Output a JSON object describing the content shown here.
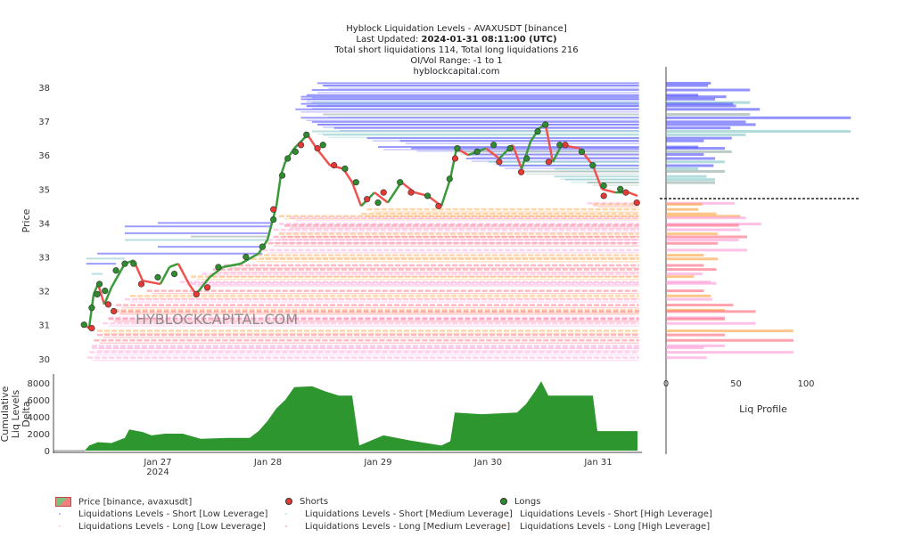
{
  "header": {
    "line1": "Hyblock Liquidation Levels - AVAXUSDT [binance]",
    "line2_label": "Last Updated: ",
    "line2_value": "2024-01-31 08:11:00 (UTC)",
    "line3": "Total short liquidations 114, Total long liquidations 216",
    "line4": "OI/Vol Range: -1 to 1",
    "line5": "hyblockcapital.com"
  },
  "watermark": "HYBLOCKCAPITAL.COM",
  "colors": {
    "price_up": "#3a9a3a",
    "price_down": "#ef5350",
    "shorts": "#e53935",
    "longs": "#2e8b2e",
    "sl": "#4a4aff",
    "sm": "#7fc4c4",
    "sh": "#8fa8a0",
    "ll": "#ff9ad6",
    "lm": "#ff6478",
    "lh": "#ffa040",
    "delta": "#2e962e"
  },
  "legend": [
    {
      "label": "Price [binance, avaxusdt]",
      "type": "price"
    },
    {
      "label": "Shorts",
      "type": "dot",
      "color": "#e53935"
    },
    {
      "label": "Longs",
      "type": "dot",
      "color": "#2e8b2e"
    },
    {
      "label": "Liquidations Levels - Short [Low Leverage]",
      "type": "faint",
      "color": "#4a4aff"
    },
    {
      "label": "Liquidations Levels - Short [Medium Leverage]",
      "type": "faint",
      "color": "#7fc4c4"
    },
    {
      "label": "Liquidations Levels - Short [High Leverage]",
      "type": "faint",
      "color": "#8fa8a0"
    },
    {
      "label": "Liquidations Levels - Long [Low Leverage]",
      "type": "faint",
      "color": "#ff9ad6"
    },
    {
      "label": "Liquidations Levels - Long [Medium Leverage]",
      "type": "faint",
      "color": "#ff6478"
    },
    {
      "label": "Liquidations Levels - Long [High Leverage]",
      "type": "faint",
      "color": "#ffa040"
    }
  ],
  "chart_data": [
    {
      "type": "line",
      "name": "price",
      "ylabel": "Price",
      "ylim": [
        29.8,
        38.6
      ],
      "yticks": [
        "30",
        "31",
        "32",
        "33",
        "34",
        "35",
        "36",
        "37",
        "38"
      ],
      "x_unit": "days since Jan 26 2024 00:00",
      "xticks": [
        {
          "t": 1,
          "label": "Jan 27",
          "sub": "2024"
        },
        {
          "t": 2,
          "label": "Jan 28"
        },
        {
          "t": 3,
          "label": "Jan 29"
        },
        {
          "t": 4,
          "label": "Jan 30"
        },
        {
          "t": 5,
          "label": "Jan 31"
        }
      ],
      "price": [
        [
          0.336,
          31.0
        ],
        [
          0.376,
          30.9
        ],
        [
          0.417,
          31.9
        ],
        [
          0.457,
          32.2
        ],
        [
          0.514,
          31.6
        ],
        [
          0.579,
          32.1
        ],
        [
          0.7,
          32.8
        ],
        [
          0.781,
          32.9
        ],
        [
          0.862,
          32.3
        ],
        [
          1.024,
          32.2
        ],
        [
          1.105,
          32.7
        ],
        [
          1.186,
          32.8
        ],
        [
          1.283,
          32.2
        ],
        [
          1.348,
          31.9
        ],
        [
          1.47,
          32.4
        ],
        [
          1.591,
          32.7
        ],
        [
          1.753,
          32.8
        ],
        [
          1.915,
          33.1
        ],
        [
          1.996,
          33.5
        ],
        [
          2.036,
          34.0
        ],
        [
          2.077,
          34.5
        ],
        [
          2.117,
          35.4
        ],
        [
          2.158,
          35.8
        ],
        [
          2.239,
          36.2
        ],
        [
          2.36,
          36.6
        ],
        [
          2.441,
          36.2
        ],
        [
          2.563,
          35.7
        ],
        [
          2.684,
          35.6
        ],
        [
          2.765,
          35.2
        ],
        [
          2.846,
          34.5
        ],
        [
          2.968,
          34.9
        ],
        [
          3.089,
          34.6
        ],
        [
          3.211,
          35.2
        ],
        [
          3.332,
          34.9
        ],
        [
          3.453,
          34.8
        ],
        [
          3.575,
          34.5
        ],
        [
          3.656,
          35.3
        ],
        [
          3.713,
          36.2
        ],
        [
          3.818,
          36.0
        ],
        [
          3.98,
          36.2
        ],
        [
          4.101,
          35.9
        ],
        [
          4.223,
          36.3
        ],
        [
          4.304,
          35.6
        ],
        [
          4.385,
          36.4
        ],
        [
          4.466,
          36.8
        ],
        [
          4.522,
          36.9
        ],
        [
          4.587,
          35.8
        ],
        [
          4.668,
          36.3
        ],
        [
          4.83,
          36.2
        ],
        [
          4.951,
          35.7
        ],
        [
          5.032,
          35.0
        ],
        [
          5.154,
          34.9
        ],
        [
          5.275,
          34.9
        ],
        [
          5.356,
          34.8
        ]
      ],
      "shorts": [
        [
          0.4,
          30.9
        ],
        [
          0.55,
          31.6
        ],
        [
          0.6,
          31.4
        ],
        [
          0.85,
          32.2
        ],
        [
          1.35,
          31.9
        ],
        [
          1.45,
          32.1
        ],
        [
          2.05,
          34.4
        ],
        [
          2.3,
          36.3
        ],
        [
          2.45,
          36.2
        ],
        [
          2.6,
          35.7
        ],
        [
          2.9,
          34.7
        ],
        [
          3.05,
          34.9
        ],
        [
          3.3,
          34.9
        ],
        [
          3.55,
          34.5
        ],
        [
          3.7,
          35.9
        ],
        [
          4.1,
          35.8
        ],
        [
          4.3,
          35.5
        ],
        [
          4.55,
          35.8
        ],
        [
          4.7,
          36.3
        ],
        [
          5.05,
          34.8
        ],
        [
          5.25,
          34.9
        ],
        [
          5.35,
          34.6
        ]
      ],
      "longs": [
        [
          0.33,
          31.0
        ],
        [
          0.4,
          31.5
        ],
        [
          0.45,
          31.9
        ],
        [
          0.47,
          32.2
        ],
        [
          0.52,
          32.0
        ],
        [
          0.62,
          32.6
        ],
        [
          0.7,
          32.8
        ],
        [
          0.78,
          32.8
        ],
        [
          1.0,
          32.4
        ],
        [
          1.15,
          32.5
        ],
        [
          1.55,
          32.7
        ],
        [
          1.8,
          33.0
        ],
        [
          1.95,
          33.3
        ],
        [
          2.05,
          34.1
        ],
        [
          2.13,
          35.4
        ],
        [
          2.18,
          35.9
        ],
        [
          2.25,
          36.1
        ],
        [
          2.35,
          36.6
        ],
        [
          2.5,
          36.3
        ],
        [
          2.7,
          35.6
        ],
        [
          2.8,
          35.2
        ],
        [
          3.0,
          34.6
        ],
        [
          3.2,
          35.2
        ],
        [
          3.45,
          34.8
        ],
        [
          3.65,
          35.3
        ],
        [
          3.72,
          36.2
        ],
        [
          3.9,
          36.1
        ],
        [
          4.05,
          36.3
        ],
        [
          4.2,
          36.2
        ],
        [
          4.35,
          35.9
        ],
        [
          4.45,
          36.7
        ],
        [
          4.52,
          36.9
        ],
        [
          4.65,
          36.3
        ],
        [
          4.85,
          36.1
        ],
        [
          4.95,
          35.7
        ],
        [
          5.05,
          35.1
        ],
        [
          5.2,
          35.0
        ]
      ],
      "expired_levels": [
        [
          33.9,
          0.7,
          2.02,
          "sl"
        ],
        [
          33.7,
          0.7,
          2.0,
          "sl"
        ],
        [
          33.5,
          0.7,
          2.0,
          "sm"
        ],
        [
          33.3,
          1.0,
          1.98,
          "sl"
        ],
        [
          33.1,
          0.45,
          1.95,
          "sl"
        ],
        [
          32.95,
          0.35,
          0.7,
          "sm"
        ],
        [
          32.8,
          0.35,
          0.62,
          "sl"
        ],
        [
          33.6,
          1.3,
          2.0,
          "sh"
        ],
        [
          34.0,
          1.0,
          2.03,
          "sl"
        ],
        [
          32.5,
          0.4,
          0.5,
          "sm"
        ]
      ]
    },
    {
      "type": "bar",
      "orientation": "horizontal",
      "name": "liq_profile",
      "xlabel": "Liq Profile",
      "xticks": [
        "0",
        "50",
        "100"
      ],
      "xlim": [
        0,
        140
      ],
      "current_price": 34.72,
      "levels": [
        [
          38.12,
          32,
          "sl",
          2.45
        ],
        [
          38.05,
          30,
          "sl",
          2.5
        ],
        [
          37.92,
          60,
          "sl",
          2.4
        ],
        [
          37.77,
          23,
          "sl",
          2.35
        ],
        [
          37.72,
          43,
          "sl",
          2.3
        ],
        [
          37.65,
          35,
          "sl",
          2.3
        ],
        [
          37.55,
          60,
          "sm",
          2.4
        ],
        [
          37.51,
          48,
          "sl",
          2.3
        ],
        [
          37.45,
          50,
          "sl",
          2.35
        ],
        [
          37.35,
          67,
          "sl",
          2.25
        ],
        [
          37.2,
          60,
          "sh",
          2.5
        ],
        [
          37.1,
          132,
          "sl",
          2.3
        ],
        [
          36.98,
          57,
          "sl",
          2.4
        ],
        [
          36.9,
          64,
          "sl",
          2.45
        ],
        [
          36.8,
          46,
          "sl",
          2.6
        ],
        [
          36.7,
          132,
          "sm",
          2.4
        ],
        [
          36.6,
          57,
          "sm",
          2.5
        ],
        [
          36.5,
          47,
          "sl",
          2.9
        ],
        [
          36.42,
          27,
          "sl",
          3.2
        ],
        [
          36.24,
          23,
          "sl",
          3.0
        ],
        [
          36.2,
          42,
          "sl",
          3.3
        ],
        [
          36.1,
          47,
          "sh",
          3.7
        ],
        [
          36.02,
          27,
          "sl",
          3.8
        ],
        [
          35.9,
          35,
          "sl",
          3.8
        ],
        [
          35.8,
          42,
          "sm",
          4.0
        ],
        [
          35.69,
          34,
          "sl",
          4.1
        ],
        [
          35.6,
          23,
          "sm",
          4.6
        ],
        [
          35.52,
          42,
          "sh",
          4.3
        ],
        [
          35.37,
          29,
          "sm",
          4.6
        ],
        [
          35.28,
          35,
          "sm",
          4.7
        ],
        [
          35.19,
          35,
          "sh",
          4.9
        ],
        [
          34.58,
          49,
          "ll",
          4.9
        ],
        [
          34.55,
          26,
          "lh",
          4.95
        ],
        [
          34.4,
          23,
          "lh",
          2.9
        ],
        [
          34.27,
          36,
          "lh",
          2.85
        ],
        [
          34.2,
          53,
          "lh",
          2.1
        ],
        [
          34.15,
          57,
          "ll",
          2.2
        ],
        [
          33.97,
          68,
          "ll",
          2.1
        ],
        [
          33.93,
          52,
          "lm",
          2.15
        ],
        [
          33.8,
          53,
          "ll",
          2.05
        ],
        [
          33.68,
          37,
          "lh",
          2.1
        ],
        [
          33.59,
          58,
          "lm",
          2.05
        ],
        [
          33.5,
          52,
          "ll",
          2.0
        ],
        [
          33.4,
          37,
          "lm",
          2.0
        ],
        [
          33.2,
          58,
          "ll",
          1.95
        ],
        [
          33.05,
          27,
          "lh",
          1.9
        ],
        [
          32.94,
          37,
          "lh",
          1.85
        ],
        [
          32.75,
          27,
          "lm",
          1.6
        ],
        [
          32.63,
          36,
          "lm",
          1.5
        ],
        [
          32.5,
          26,
          "ll",
          1.4
        ],
        [
          32.42,
          20,
          "lh",
          1.3
        ],
        [
          32.26,
          32,
          "ll",
          1.2
        ],
        [
          32.22,
          36,
          "ll",
          1.3
        ],
        [
          32.0,
          27,
          "lm",
          0.9
        ],
        [
          31.85,
          32,
          "lh",
          0.75
        ],
        [
          31.75,
          33,
          "ll",
          0.7
        ],
        [
          31.58,
          48,
          "lm",
          0.62
        ],
        [
          31.43,
          42,
          "lh",
          0.6
        ],
        [
          31.39,
          64,
          "lm",
          0.6
        ],
        [
          31.21,
          42,
          "ll",
          0.55
        ],
        [
          31.17,
          42,
          "lm",
          0.55
        ],
        [
          31.04,
          64,
          "ll",
          0.5
        ],
        [
          30.82,
          91,
          "lh",
          0.45
        ],
        [
          30.7,
          42,
          "lm",
          0.45
        ],
        [
          30.54,
          91,
          "lm",
          0.42
        ],
        [
          30.38,
          42,
          "ll",
          0.4
        ],
        [
          30.32,
          27,
          "ll",
          0.4
        ],
        [
          30.19,
          91,
          "ll",
          0.38
        ],
        [
          30.03,
          29,
          "ll",
          0.36
        ]
      ]
    },
    {
      "type": "area",
      "name": "cumulative_liq_levels_delta",
      "ylabel": "Cumulative Liq Levels Delta",
      "ylim": [
        0,
        9000
      ],
      "yticks": [
        "0",
        "2000",
        "4000",
        "6000",
        "8000"
      ],
      "values": [
        [
          0.336,
          0
        ],
        [
          0.377,
          600
        ],
        [
          0.457,
          1000
        ],
        [
          0.579,
          900
        ],
        [
          0.7,
          1500
        ],
        [
          0.741,
          2500
        ],
        [
          0.862,
          2200
        ],
        [
          0.943,
          1800
        ],
        [
          1.065,
          2000
        ],
        [
          1.227,
          2000
        ],
        [
          1.389,
          1400
        ],
        [
          1.632,
          1500
        ],
        [
          1.834,
          1500
        ],
        [
          1.915,
          2300
        ],
        [
          1.996,
          3500
        ],
        [
          2.077,
          5000
        ],
        [
          2.158,
          6000
        ],
        [
          2.239,
          7500
        ],
        [
          2.401,
          7600
        ],
        [
          2.522,
          7000
        ],
        [
          2.644,
          6500
        ],
        [
          2.765,
          6500
        ],
        [
          2.83,
          600
        ],
        [
          3.049,
          1800
        ],
        [
          3.291,
          1200
        ],
        [
          3.575,
          600
        ],
        [
          3.656,
          1100
        ],
        [
          3.697,
          4500
        ],
        [
          3.939,
          4300
        ],
        [
          4.263,
          4500
        ],
        [
          4.344,
          5500
        ],
        [
          4.425,
          7000
        ],
        [
          4.482,
          8200
        ],
        [
          4.547,
          6500
        ],
        [
          4.951,
          6500
        ],
        [
          4.992,
          2300
        ],
        [
          5.356,
          2300
        ]
      ]
    }
  ]
}
